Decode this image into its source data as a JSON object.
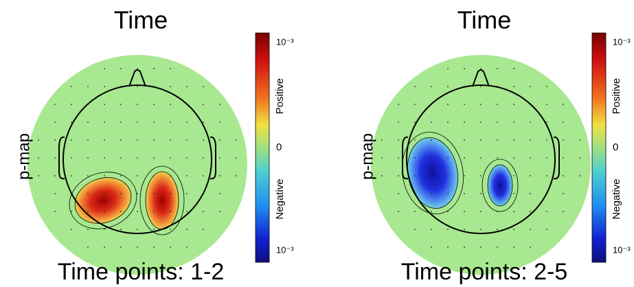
{
  "panels": [
    {
      "title": "Time",
      "ylabel": "p-map",
      "caption": "Time points: 1-2",
      "colorbar": {
        "top": "10⁻³",
        "positive": "Positive",
        "zero": "0",
        "negative": "Negative",
        "bottom": "10⁻³"
      }
    },
    {
      "title": "Time",
      "ylabel": "p-map",
      "caption": "Time points: 2-5",
      "colorbar": {
        "top": "10⁻³",
        "positive": "Positive",
        "zero": "0",
        "negative": "Negative",
        "bottom": "10⁻³"
      }
    }
  ]
}
